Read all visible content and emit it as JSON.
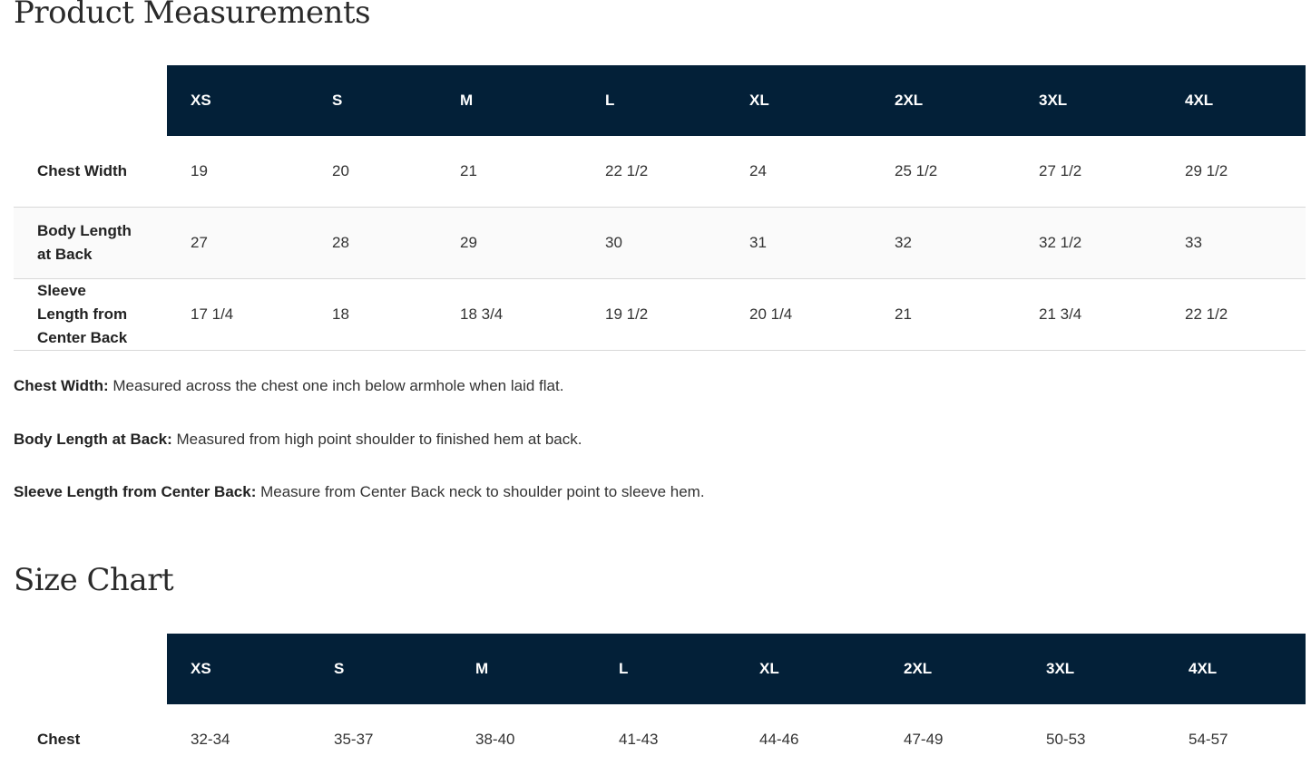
{
  "measurements": {
    "title": "Product Measurements",
    "sizes": [
      "XS",
      "S",
      "M",
      "L",
      "XL",
      "2XL",
      "3XL",
      "4XL"
    ],
    "rows": [
      {
        "label": "Chest Width",
        "values": [
          "19",
          "20",
          "21",
          "22 1/2",
          "24",
          "25 1/2",
          "27 1/2",
          "29 1/2"
        ]
      },
      {
        "label": "Body Length at Back",
        "values": [
          "27",
          "28",
          "29",
          "30",
          "31",
          "32",
          "32 1/2",
          "33"
        ]
      },
      {
        "label": "Sleeve Length from Center Back",
        "values": [
          "17 1/4",
          "18",
          "18 3/4",
          "19 1/2",
          "20 1/4",
          "21",
          "21 3/4",
          "22 1/2"
        ]
      }
    ],
    "notes": [
      {
        "term": "Chest Width:",
        "text": " Measured across the chest one inch below armhole when laid flat."
      },
      {
        "term": "Body Length at Back:",
        "text": " Measured from high point shoulder to finished hem at back."
      },
      {
        "term": "Sleeve Length from Center Back:",
        "text": " Measure from Center Back neck to shoulder point to sleeve hem."
      }
    ]
  },
  "size_chart": {
    "title": "Size Chart",
    "sizes": [
      "XS",
      "S",
      "M",
      "L",
      "XL",
      "2XL",
      "3XL",
      "4XL"
    ],
    "rows": [
      {
        "label": "Chest",
        "values": [
          "32-34",
          "35-37",
          "38-40",
          "41-43",
          "44-46",
          "47-49",
          "50-53",
          "54-57"
        ]
      }
    ]
  },
  "colors": {
    "header_bg": "#032038",
    "header_text": "#ffffff"
  }
}
